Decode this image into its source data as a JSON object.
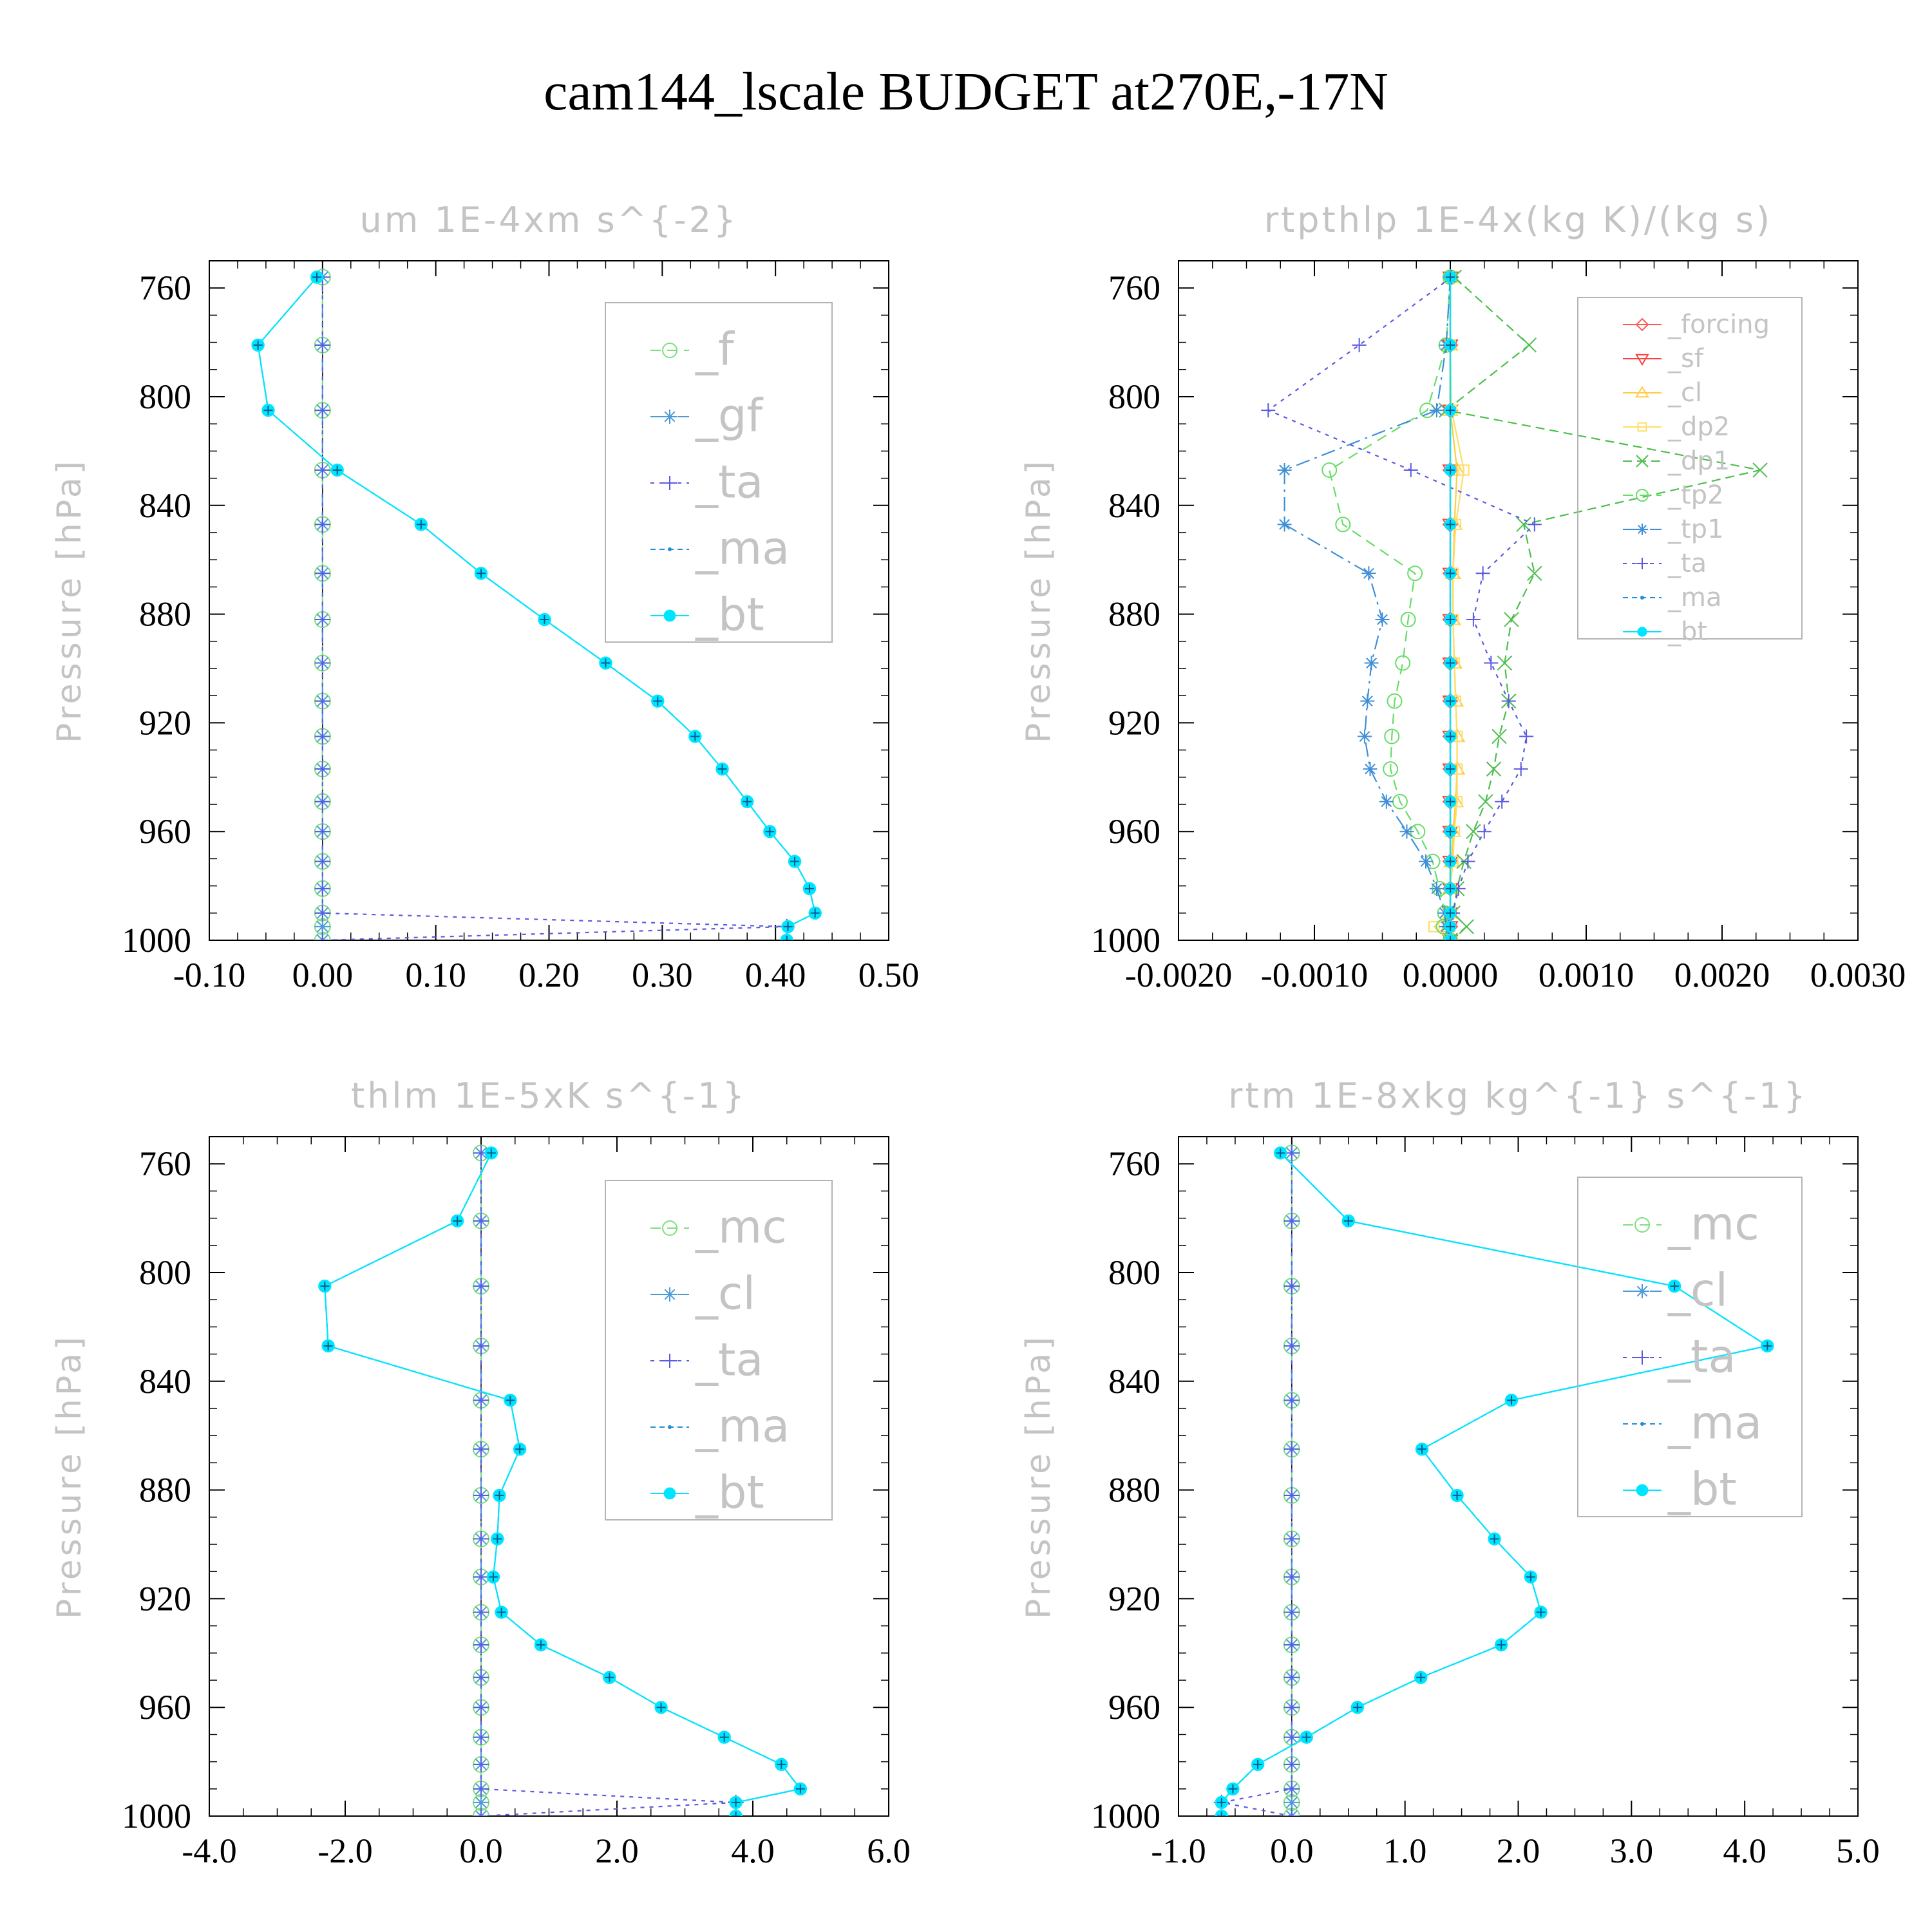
{
  "title": "cam144_lscale  BUDGET at270E,-17N",
  "chart_data": [
    {
      "type": "line",
      "title": "um  1E-4xm s^{-2}",
      "ylabel": "Pressure [hPa]",
      "xlim": [
        -0.1,
        0.5
      ],
      "ylim": [
        1000,
        750
      ],
      "xticks": [
        "-0.10",
        "0.00",
        "0.10",
        "0.20",
        "0.30",
        "0.40",
        "0.50"
      ],
      "yticks": [
        "760",
        "800",
        "840",
        "880",
        "920",
        "960",
        "1000"
      ],
      "legend": "top-right",
      "levels": [
        756,
        781,
        805,
        827,
        847,
        865,
        882,
        898,
        912,
        925,
        937,
        949,
        960,
        971,
        981,
        990,
        995,
        1000
      ],
      "series": [
        {
          "name": "_f",
          "color": "#7be07b",
          "marker": "circle",
          "values": [
            0,
            0,
            0,
            0,
            0,
            0,
            0,
            0,
            0,
            0,
            0,
            0,
            0,
            0,
            0,
            0,
            0,
            0
          ]
        },
        {
          "name": "_gf",
          "color": "#4a9ad8",
          "marker": "star",
          "values": [
            0,
            0,
            0,
            0,
            0,
            0,
            0,
            0,
            0,
            0,
            0,
            0,
            0,
            0,
            0,
            0,
            0,
            0
          ]
        },
        {
          "name": "_ta",
          "color": "#5a5ae0",
          "marker": "plus",
          "values": [
            0,
            0,
            0,
            0,
            0,
            0,
            0,
            0,
            0,
            0,
            0,
            0,
            0,
            0,
            0,
            0,
            0.41,
            0
          ]
        },
        {
          "name": "_ma",
          "color": "#1e8fd6",
          "marker": "dot",
          "values": [
            -0.005,
            -0.057,
            -0.048,
            0.013,
            0.087,
            0.14,
            0.196,
            0.25,
            0.296,
            0.329,
            0.353,
            0.375,
            0.395,
            0.417,
            0.43,
            0.435,
            0.411,
            0.41
          ]
        },
        {
          "name": "_bt",
          "color": "#00e5ff",
          "marker": "bigdot",
          "values": [
            -0.005,
            -0.057,
            -0.048,
            0.013,
            0.087,
            0.14,
            0.196,
            0.25,
            0.296,
            0.329,
            0.353,
            0.375,
            0.395,
            0.417,
            0.43,
            0.435,
            0.411,
            0.41
          ]
        }
      ]
    },
    {
      "type": "line",
      "title": "rtpthlp  1E-4x(kg K)/(kg s)",
      "ylabel": "Pressure [hPa]",
      "xlim": [
        -0.002,
        0.003
      ],
      "ylim": [
        1000,
        750
      ],
      "xticks": [
        "-0.0020",
        "-0.0010",
        "0.0000",
        "0.0010",
        "0.0020",
        "0.0030"
      ],
      "yticks": [
        "760",
        "800",
        "840",
        "880",
        "920",
        "960",
        "1000"
      ],
      "legend": "top-right",
      "levels": [
        756,
        781,
        805,
        827,
        847,
        865,
        882,
        898,
        912,
        925,
        937,
        949,
        960,
        971,
        981,
        990,
        995,
        1000
      ],
      "series": [
        {
          "name": "_forcing",
          "color": "#ff5a5a",
          "marker": "diamond",
          "values": [
            0,
            0,
            0,
            0,
            0,
            0,
            0,
            0,
            0,
            0,
            0,
            0,
            0,
            0,
            0,
            0,
            0,
            0
          ]
        },
        {
          "name": "_sf",
          "color": "#ff4040",
          "marker": "triangle",
          "values": [
            0,
            0,
            0,
            0,
            0,
            0,
            0,
            0,
            0,
            0,
            0,
            0,
            0,
            0,
            0,
            0,
            0,
            0
          ]
        },
        {
          "name": "_cl",
          "color": "#ffcc40",
          "marker": "triangle-up",
          "values": [
            0,
            0,
            0,
            5e-05,
            3e-05,
            2e-05,
            2e-05,
            3e-05,
            4e-05,
            5e-05,
            5e-05,
            4e-05,
            2e-05,
            1e-05,
            0,
            0,
            -2e-05,
            0
          ]
        },
        {
          "name": "_dp2",
          "color": "#ffdd66",
          "marker": "square",
          "values": [
            0,
            0,
            1e-05,
            0.0001,
            4e-05,
            2e-05,
            2e-05,
            3e-05,
            4e-05,
            5e-05,
            5e-05,
            5e-05,
            3e-05,
            2e-05,
            0,
            0,
            -0.00012,
            0
          ]
        },
        {
          "name": "_dp1",
          "color": "#4bbf4b",
          "marker": "cross",
          "values": [
            3e-05,
            0.00058,
            -3e-05,
            0.00228,
            0.00054,
            0.00062,
            0.00045,
            0.0004,
            0.00043,
            0.00036,
            0.00032,
            0.00026,
            0.00017,
            0.0001,
            5e-05,
            2e-05,
            0.00012,
            0
          ]
        },
        {
          "name": "_tp2",
          "color": "#66dd66",
          "marker": "circle",
          "values": [
            0,
            -3e-05,
            -0.00017,
            -0.00089,
            -0.00079,
            -0.00026,
            -0.00031,
            -0.00035,
            -0.00041,
            -0.00043,
            -0.00044,
            -0.00037,
            -0.00024,
            -0.00013,
            -8e-05,
            -4e-05,
            -5e-05,
            0
          ]
        },
        {
          "name": "_tp1",
          "color": "#3f8fd6",
          "marker": "star",
          "values": [
            0,
            -3e-05,
            -0.0001,
            -0.00122,
            -0.00122,
            -0.0006,
            -0.0005,
            -0.00058,
            -0.00061,
            -0.00063,
            -0.00059,
            -0.00047,
            -0.00032,
            -0.00018,
            -0.0001,
            -4e-05,
            -3e-05,
            0
          ]
        },
        {
          "name": "_ta",
          "color": "#5a5ae0",
          "marker": "plus",
          "values": [
            1e-05,
            -0.00067,
            -0.00134,
            -0.00029,
            0.00062,
            0.00024,
            0.00017,
            0.0003,
            0.00043,
            0.00056,
            0.00052,
            0.00038,
            0.00025,
            0.00013,
            6e-05,
            2e-05,
            -1e-05,
            0
          ]
        },
        {
          "name": "_ma",
          "color": "#1e8fd6",
          "marker": "dot",
          "values": [
            0,
            0,
            0,
            0,
            0,
            0,
            0,
            0,
            0,
            0,
            0,
            0,
            0,
            0,
            0,
            0,
            0,
            0
          ]
        },
        {
          "name": "_bt",
          "color": "#00e5ff",
          "marker": "bigdot",
          "values": [
            0,
            0,
            0,
            0,
            0,
            0,
            0,
            0,
            0,
            0,
            0,
            0,
            0,
            0,
            0,
            0,
            0,
            0
          ]
        }
      ]
    },
    {
      "type": "line",
      "title": "thlm  1E-5xK s^{-1}",
      "ylabel": "Pressure [hPa]",
      "xlim": [
        -4.0,
        6.0
      ],
      "ylim": [
        1000,
        750
      ],
      "xticks": [
        "-4.0",
        "-2.0",
        "0.0",
        "2.0",
        "4.0",
        "6.0"
      ],
      "yticks": [
        "760",
        "800",
        "840",
        "880",
        "920",
        "960",
        "1000"
      ],
      "legend": "top-right",
      "levels": [
        756,
        781,
        805,
        827,
        847,
        865,
        882,
        898,
        912,
        925,
        937,
        949,
        960,
        971,
        981,
        990,
        995,
        1000
      ],
      "series": [
        {
          "name": "_mc",
          "color": "#7be07b",
          "marker": "circle",
          "values": [
            0,
            0,
            0,
            0,
            0,
            0,
            0,
            0,
            0,
            0,
            0,
            0,
            0,
            0,
            0,
            0,
            0,
            0
          ]
        },
        {
          "name": "_cl",
          "color": "#4a9ad8",
          "marker": "star",
          "values": [
            0,
            0,
            0,
            0,
            0,
            0,
            0,
            0,
            0,
            0,
            0,
            0,
            0,
            0,
            0,
            0,
            0,
            0
          ]
        },
        {
          "name": "_ta",
          "color": "#5a5ae0",
          "marker": "plus",
          "values": [
            0,
            0,
            0,
            0,
            0,
            0,
            0,
            0,
            0,
            0,
            0,
            0,
            0,
            0,
            0,
            0,
            3.75,
            0
          ]
        },
        {
          "name": "_ma",
          "color": "#1e8fd6",
          "marker": "dot",
          "values": [
            0.15,
            -0.35,
            -2.3,
            -2.25,
            0.43,
            0.57,
            0.27,
            0.24,
            0.18,
            0.3,
            0.88,
            1.89,
            2.65,
            3.58,
            4.42,
            4.7,
            3.75,
            3.75
          ]
        },
        {
          "name": "_bt",
          "color": "#00e5ff",
          "marker": "bigdot",
          "values": [
            0.15,
            -0.35,
            -2.3,
            -2.25,
            0.43,
            0.57,
            0.27,
            0.24,
            0.18,
            0.3,
            0.88,
            1.89,
            2.65,
            3.58,
            4.42,
            4.7,
            3.75,
            3.75
          ]
        }
      ]
    },
    {
      "type": "line",
      "title": "rtm  1E-8xkg kg^{-1} s^{-1}",
      "ylabel": "Pressure [hPa]",
      "xlim": [
        -1.0,
        5.0
      ],
      "ylim": [
        1000,
        750
      ],
      "xticks": [
        "-1.0",
        "0.0",
        "1.0",
        "2.0",
        "3.0",
        "4.0",
        "5.0"
      ],
      "yticks": [
        "760",
        "800",
        "840",
        "880",
        "920",
        "960",
        "1000"
      ],
      "legend": "top-right",
      "levels": [
        756,
        781,
        805,
        827,
        847,
        865,
        882,
        898,
        912,
        925,
        937,
        949,
        960,
        971,
        981,
        990,
        995,
        1000
      ],
      "series": [
        {
          "name": "_mc",
          "color": "#7be07b",
          "marker": "circle",
          "values": [
            0,
            0,
            0,
            0,
            0,
            0,
            0,
            0,
            0,
            0,
            0,
            0,
            0,
            0,
            0,
            0,
            0,
            0
          ]
        },
        {
          "name": "_cl",
          "color": "#4a9ad8",
          "marker": "star",
          "values": [
            0,
            0,
            0,
            0,
            0,
            0,
            0,
            0,
            0,
            0,
            0,
            0,
            0,
            0,
            0,
            0,
            0,
            0
          ]
        },
        {
          "name": "_ta",
          "color": "#5a5ae0",
          "marker": "plus",
          "values": [
            0,
            0,
            0,
            0,
            0,
            0,
            0,
            0,
            0,
            0,
            0,
            0,
            0,
            0,
            0,
            0,
            -0.62,
            0
          ]
        },
        {
          "name": "_ma",
          "color": "#1e8fd6",
          "marker": "dot",
          "values": [
            -0.1,
            0.5,
            3.38,
            4.2,
            1.94,
            1.15,
            1.46,
            1.79,
            2.11,
            2.2,
            1.85,
            1.14,
            0.58,
            0.13,
            -0.3,
            -0.52,
            -0.62,
            -0.62
          ]
        },
        {
          "name": "_bt",
          "color": "#00e5ff",
          "marker": "bigdot",
          "values": [
            -0.1,
            0.5,
            3.38,
            4.2,
            1.94,
            1.15,
            1.46,
            1.79,
            2.11,
            2.2,
            1.85,
            1.14,
            0.58,
            0.13,
            -0.3,
            -0.52,
            -0.62,
            -0.62
          ]
        }
      ]
    }
  ]
}
